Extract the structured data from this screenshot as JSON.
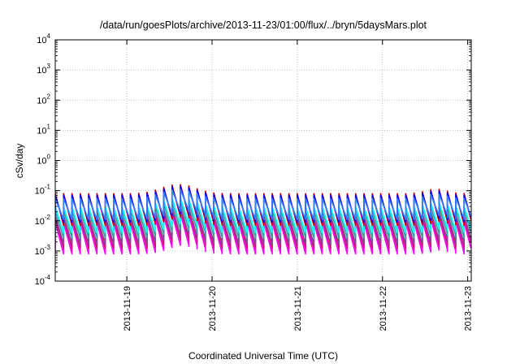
{
  "chart_data": {
    "type": "line",
    "title": "/data/run/goesPlots/archive/2013-11-23/01:00/flux/../bryn/5daysMars.plot",
    "xlabel": "Coordinated Universal Time (UTC)",
    "ylabel": "cSv/day",
    "y_scale": "log",
    "ylim": [
      0.0001,
      10000
    ],
    "xlim": [
      "2013-11-18 03:50",
      "2013-11-23 01:00"
    ],
    "grid": true,
    "y_ticks": [
      {
        "value": 0.0001,
        "base": "10",
        "exp": "-4"
      },
      {
        "value": 0.001,
        "base": "10",
        "exp": "-3"
      },
      {
        "value": 0.01,
        "base": "10",
        "exp": "-2"
      },
      {
        "value": 0.1,
        "base": "10",
        "exp": "-1"
      },
      {
        "value": 1,
        "base": "10",
        "exp": "0"
      },
      {
        "value": 10,
        "base": "10",
        "exp": "1"
      },
      {
        "value": 100,
        "base": "10",
        "exp": "2"
      },
      {
        "value": 1000,
        "base": "10",
        "exp": "3"
      },
      {
        "value": 10000,
        "base": "10",
        "exp": "4"
      }
    ],
    "x_ticks": [
      {
        "value": "2013-11-19 00:00",
        "label": "2013-11-19"
      },
      {
        "value": "2013-11-20 00:00",
        "label": "2013-11-20"
      },
      {
        "value": "2013-11-21 00:00",
        "label": "2013-11-21"
      },
      {
        "value": "2013-11-22 00:00",
        "label": "2013-11-22"
      },
      {
        "value": "2013-11-23 00:00",
        "label": "2013-11-23"
      }
    ],
    "pulse_period_hours": 2.35,
    "series": [
      {
        "color": "#ff00ff",
        "peak": 0.009,
        "trough": 0.0008
      },
      {
        "color": "#cc1177",
        "peak": 0.012,
        "trough": 0.0012
      },
      {
        "color": "#884499",
        "peak": 0.015,
        "trough": 0.0017
      },
      {
        "color": "#33a0a0",
        "peak": 0.022,
        "trough": 0.0027
      },
      {
        "color": "#00ffff",
        "peak": 0.03,
        "trough": 0.004
      },
      {
        "color": "#cc0000",
        "peak": 0.08,
        "trough": 0.007
      },
      {
        "color": "#0000ff",
        "peak": 0.07,
        "trough": 0.009
      },
      {
        "color": "#3080ff",
        "peak": 0.055,
        "trough": 0.011
      }
    ],
    "enhancement": [
      {
        "center": "2013-11-19 14:30",
        "width_hours": 6,
        "factor": 2.0
      },
      {
        "center": "2013-11-22 15:00",
        "width_hours": 4,
        "factor": 1.4
      }
    ]
  }
}
